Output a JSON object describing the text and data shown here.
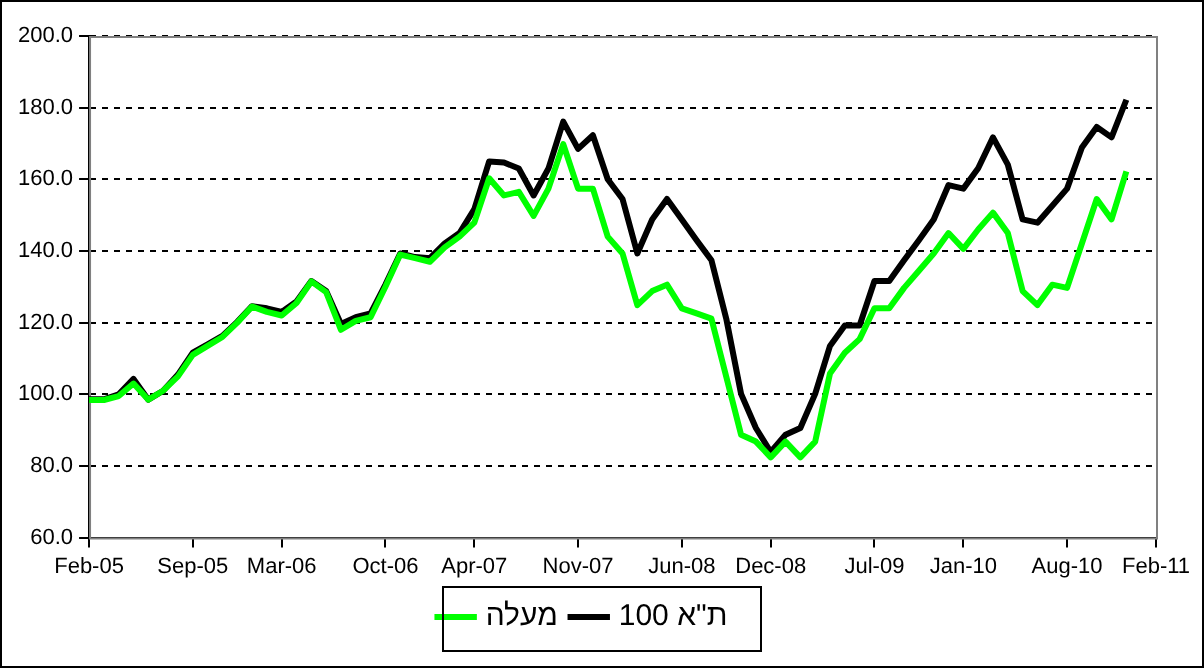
{
  "chart_data": {
    "type": "line",
    "x": [
      "2005-02",
      "2005-03",
      "2005-04",
      "2005-05",
      "2005-06",
      "2005-07",
      "2005-08",
      "2005-09",
      "2005-10",
      "2005-11",
      "2005-12",
      "2006-01",
      "2006-02",
      "2006-03",
      "2006-04",
      "2006-05",
      "2006-06",
      "2006-07",
      "2006-08",
      "2006-09",
      "2006-10",
      "2006-11",
      "2006-12",
      "2007-01",
      "2007-02",
      "2007-03",
      "2007-04",
      "2007-05",
      "2007-06",
      "2007-07",
      "2007-08",
      "2007-09",
      "2007-10",
      "2007-11",
      "2007-12",
      "2008-01",
      "2008-02",
      "2008-03",
      "2008-04",
      "2008-05",
      "2008-06",
      "2008-07",
      "2008-08",
      "2008-09",
      "2008-10",
      "2008-11",
      "2008-12",
      "2009-01",
      "2009-02",
      "2009-03",
      "2009-04",
      "2009-05",
      "2009-06",
      "2009-07",
      "2009-08",
      "2009-09",
      "2009-10",
      "2009-11",
      "2009-12",
      "2010-01",
      "2010-02",
      "2010-03",
      "2010-04",
      "2010-05",
      "2010-06",
      "2010-07",
      "2010-08",
      "2010-09",
      "2010-10",
      "2010-11",
      "2010-12"
    ],
    "series": [
      {
        "name": "מעלה",
        "color": "#00ff00",
        "values": [
          98.4,
          98.4,
          99.5,
          103,
          98.5,
          101,
          105,
          111,
          113.5,
          116,
          120,
          124.5,
          123,
          122,
          125.5,
          131.5,
          128.5,
          118,
          120.5,
          121.5,
          130,
          139,
          138,
          137,
          141,
          144,
          147.9,
          160.3,
          155.5,
          156.5,
          149.8,
          157.4,
          169.8,
          157.4,
          157.4,
          144,
          139.3,
          124.9,
          128.8,
          130.6,
          124,
          122.6,
          121.1,
          104.9,
          88.7,
          86.8,
          82.4,
          86.8,
          82.4,
          86.8,
          105.8,
          111.6,
          115.4,
          124,
          124,
          129.7,
          134.5,
          139.3,
          145,
          140.6,
          146,
          150.7,
          145,
          128.8,
          124.9,
          130.6,
          129.7,
          142.1,
          154.5,
          148.8,
          162.2
        ]
      },
      {
        "name": "ת\"א 100",
        "color": "#000000",
        "values": [
          98.6,
          98.6,
          100,
          104.3,
          98.5,
          101,
          105.5,
          111.6,
          113.9,
          116.3,
          120.2,
          124.6,
          124,
          123,
          125.9,
          131.6,
          128.8,
          119.6,
          121.5,
          122.6,
          130.6,
          139.3,
          138.3,
          138,
          142.1,
          145,
          151.7,
          165,
          164.7,
          163,
          155.5,
          163,
          176.1,
          168.5,
          172.3,
          160,
          154.5,
          139.3,
          148.8,
          154.5,
          148.8,
          143,
          137.4,
          121.1,
          100.1,
          90.6,
          83.9,
          88.7,
          90.6,
          100.1,
          113.5,
          119.2,
          119.2,
          131.6,
          131.6,
          137.4,
          143,
          148.8,
          158.4,
          157.4,
          163.1,
          171.7,
          164.1,
          148.8,
          147.9,
          152.6,
          157.4,
          168.9,
          174.6,
          171.7,
          182.2
        ]
      }
    ],
    "xlim": [
      "2005-02",
      "2011-02"
    ],
    "xticks": [
      {
        "value": "2005-02",
        "label": "Feb-05"
      },
      {
        "value": "2005-09",
        "label": "Sep-05"
      },
      {
        "value": "2006-03",
        "label": "Mar-06"
      },
      {
        "value": "2006-10",
        "label": "Oct-06"
      },
      {
        "value": "2007-04",
        "label": "Apr-07"
      },
      {
        "value": "2007-11",
        "label": "Nov-07"
      },
      {
        "value": "2008-06",
        "label": "Jun-08"
      },
      {
        "value": "2008-12",
        "label": "Dec-08"
      },
      {
        "value": "2009-07",
        "label": "Jul-09"
      },
      {
        "value": "2010-01",
        "label": "Jan-10"
      },
      {
        "value": "2010-08",
        "label": "Aug-10"
      },
      {
        "value": "2011-02",
        "label": "Feb-11"
      }
    ],
    "ylim": [
      60,
      200
    ],
    "yticks": [
      {
        "value": 60,
        "label": "60.0"
      },
      {
        "value": 80,
        "label": "80.0"
      },
      {
        "value": 100,
        "label": "100.0"
      },
      {
        "value": 120,
        "label": "120.0"
      },
      {
        "value": 140,
        "label": "140.0"
      },
      {
        "value": 160,
        "label": "160.0"
      },
      {
        "value": 180,
        "label": "180.0"
      },
      {
        "value": 200,
        "label": "200.0"
      }
    ],
    "grid": "y",
    "legend": "bottom",
    "marker": "none",
    "line_style": "solid"
  }
}
